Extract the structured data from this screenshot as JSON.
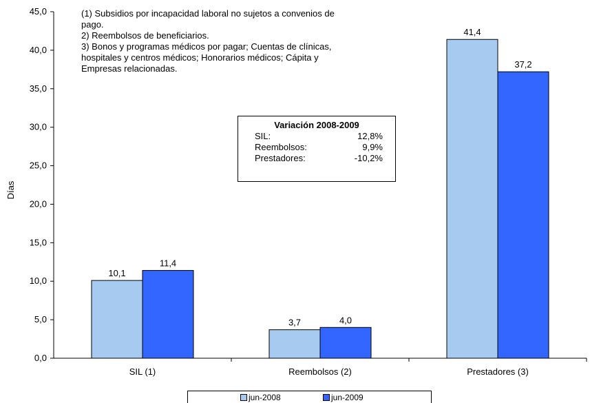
{
  "chart_data": {
    "type": "bar",
    "categories": [
      "SIL (1)",
      "Reembolsos (2)",
      "Prestadores (3)"
    ],
    "series": [
      {
        "name": "jun-2008",
        "values": [
          10.1,
          3.7,
          41.4
        ],
        "color": "#a6caf0"
      },
      {
        "name": "jun-2009",
        "values": [
          11.4,
          4.0,
          37.2
        ],
        "color": "#3366ff"
      }
    ],
    "data_labels": [
      [
        "10,1",
        "3,7",
        "41,4"
      ],
      [
        "11,4",
        "4,0",
        "37,2"
      ]
    ],
    "ylabel": "Días",
    "xlabel": "",
    "ylim": [
      0,
      45
    ],
    "yticks": [
      "0,0",
      "5,0",
      "10,0",
      "15,0",
      "20,0",
      "25,0",
      "30,0",
      "35,0",
      "40,0",
      "45,0"
    ],
    "grid": false,
    "legend_position": "bottom"
  },
  "notes": [
    "(1) Subsidios por incapacidad laboral no sujetos a convenios de pago.",
    "2) Reembolsos de beneficiarios.",
    "3) Bonos y programas médicos por pagar; Cuentas de clínicas, hospitales y centros médicos; Honorarios médicos; Cápita y Empresas relacionadas."
  ],
  "variation_box": {
    "title": "Variación 2008-2009",
    "rows": [
      {
        "label": "SIL:",
        "value": "12,8%"
      },
      {
        "label": "Reembolsos:",
        "value": "9,9%"
      },
      {
        "label": "Prestadores:",
        "value": "-10,2%"
      }
    ]
  }
}
